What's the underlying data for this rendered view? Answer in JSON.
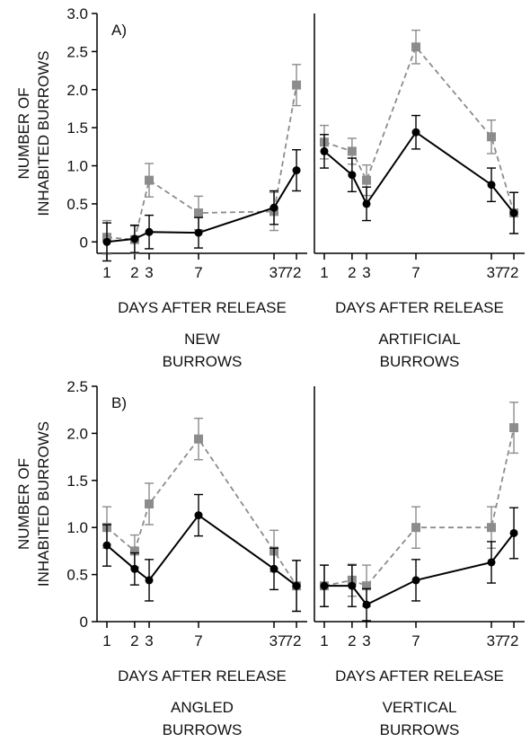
{
  "chart_data": [
    {
      "type": "line",
      "panel": "A)",
      "ylabel_lines": [
        "NUMBER OF",
        "INHABITED BURROWS"
      ],
      "xlabel": "DAYS AFTER RELEASE",
      "caption_lines": [
        "NEW",
        "BURROWS"
      ],
      "x_ticks": [
        "1",
        "2",
        "3",
        "7",
        "37",
        "72"
      ],
      "y_ticks": [
        "0",
        "0.5",
        "1.0",
        "1.5",
        "2.0",
        "2.5",
        "3.0"
      ],
      "ylim": [
        -0.15,
        3.0
      ],
      "series": [
        {
          "color": "#000000",
          "marker": "circle",
          "dash": "solid",
          "y": [
            0.0,
            0.04,
            0.13,
            0.12,
            0.45,
            0.94
          ],
          "err": [
            0.25,
            0.18,
            0.22,
            0.2,
            0.22,
            0.27
          ]
        },
        {
          "color": "#8c8c8c",
          "marker": "square",
          "dash": "dashed",
          "y": [
            0.06,
            0.03,
            0.81,
            0.38,
            0.4,
            2.06
          ],
          "err": [
            0.22,
            0.18,
            0.22,
            0.22,
            0.25,
            0.27
          ]
        }
      ]
    },
    {
      "type": "line",
      "panel": "",
      "ylabel_lines": [],
      "xlabel": "DAYS AFTER RELEASE",
      "caption_lines": [
        "ARTIFICIAL",
        "BURROWS"
      ],
      "x_ticks": [
        "1",
        "2",
        "3",
        "7",
        "37",
        "72"
      ],
      "y_ticks": [],
      "ylim": [
        -0.15,
        3.0
      ],
      "series": [
        {
          "color": "#000000",
          "marker": "circle",
          "dash": "solid",
          "y": [
            1.19,
            0.88,
            0.5,
            1.44,
            0.75,
            0.38
          ],
          "err": [
            0.22,
            0.22,
            0.22,
            0.22,
            0.22,
            0.27
          ]
        },
        {
          "color": "#8c8c8c",
          "marker": "square",
          "dash": "dashed",
          "y": [
            1.31,
            1.19,
            0.81,
            2.56,
            1.38,
            0.38
          ],
          "err": [
            0.22,
            0.17,
            0.2,
            0.22,
            0.22,
            0.27
          ]
        }
      ]
    },
    {
      "type": "line",
      "panel": "B)",
      "ylabel_lines": [
        "NUMBER OF",
        "INHABITED BURROWS"
      ],
      "xlabel": "DAYS AFTER RELEASE",
      "caption_lines": [
        "ANGLED",
        "BURROWS"
      ],
      "x_ticks": [
        "1",
        "2",
        "3",
        "7",
        "37",
        "72"
      ],
      "y_ticks": [
        "0",
        "0.5",
        "1.0",
        "1.5",
        "2.0",
        "2.5"
      ],
      "ylim": [
        0,
        2.5
      ],
      "series": [
        {
          "color": "#000000",
          "marker": "circle",
          "dash": "solid",
          "y": [
            0.81,
            0.56,
            0.44,
            1.13,
            0.56,
            0.38
          ],
          "err": [
            0.22,
            0.17,
            0.22,
            0.22,
            0.22,
            0.27
          ]
        },
        {
          "color": "#8c8c8c",
          "marker": "square",
          "dash": "dashed",
          "y": [
            1.0,
            0.75,
            1.25,
            1.94,
            0.75,
            0.38
          ],
          "err": [
            0.22,
            0.17,
            0.22,
            0.22,
            0.22,
            0.27
          ]
        }
      ]
    },
    {
      "type": "line",
      "panel": "",
      "ylabel_lines": [],
      "xlabel": "DAYS AFTER RELEASE",
      "caption_lines": [
        "VERTICAL",
        "BURROWS"
      ],
      "x_ticks": [
        "1",
        "2",
        "3",
        "7",
        "37",
        "72"
      ],
      "y_ticks": [],
      "ylim": [
        0,
        2.5
      ],
      "series": [
        {
          "color": "#000000",
          "marker": "circle",
          "dash": "solid",
          "y": [
            0.38,
            0.38,
            0.18,
            0.44,
            0.63,
            0.94
          ],
          "err": [
            0.22,
            0.22,
            0.17,
            0.22,
            0.22,
            0.27
          ]
        },
        {
          "color": "#8c8c8c",
          "marker": "square",
          "dash": "dashed",
          "y": [
            0.38,
            0.44,
            0.38,
            1.0,
            1.0,
            2.06
          ],
          "err": [
            0.22,
            0.17,
            0.22,
            0.22,
            0.22,
            0.27
          ]
        }
      ]
    }
  ]
}
